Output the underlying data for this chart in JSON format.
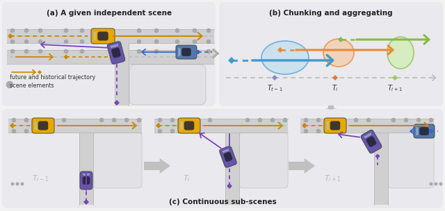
{
  "title_a": "(a) A given independent scene",
  "title_b": "(b) Chunking and aggregating",
  "title_c": "(c) Continuous sub-scenes",
  "label_traj": "future and historical trajectory",
  "label_scene": "scene elements",
  "T_labels": [
    "$T_{t-1}$",
    "$T_i$",
    "$T_{i+1}$"
  ],
  "T_sub_labels": [
    "$T_{i-1}$",
    "$T_i$",
    "$T_{i+1}$"
  ],
  "bg_fig": "#f2f2f2",
  "panel_bg": "#e9e9ee",
  "road_color": "#d0d0d0",
  "road_edge": "#bbbbbb",
  "road_dash": "#c0c0c0",
  "yellow_car": "#E8A800",
  "blue_car": "#5577AA",
  "purple_car": "#6655AA",
  "arrow_yellow": "#CC8800",
  "arrow_blue": "#3366CC",
  "arrow_purple": "#7744BB",
  "arrow_green": "#55BB33",
  "arrow_orange": "#EE7733",
  "dot_scene": "#aaaaaa",
  "timeline_color": "#bbbbbb",
  "blue_fill": "#bbddee",
  "blue_edge": "#4499CC",
  "orange_fill": "#f5ccaa",
  "orange_edge": "#EE8833",
  "green_fill": "#cceeaa",
  "green_edge": "#88BB44",
  "gray_arrow_color": "#bbbbbb"
}
